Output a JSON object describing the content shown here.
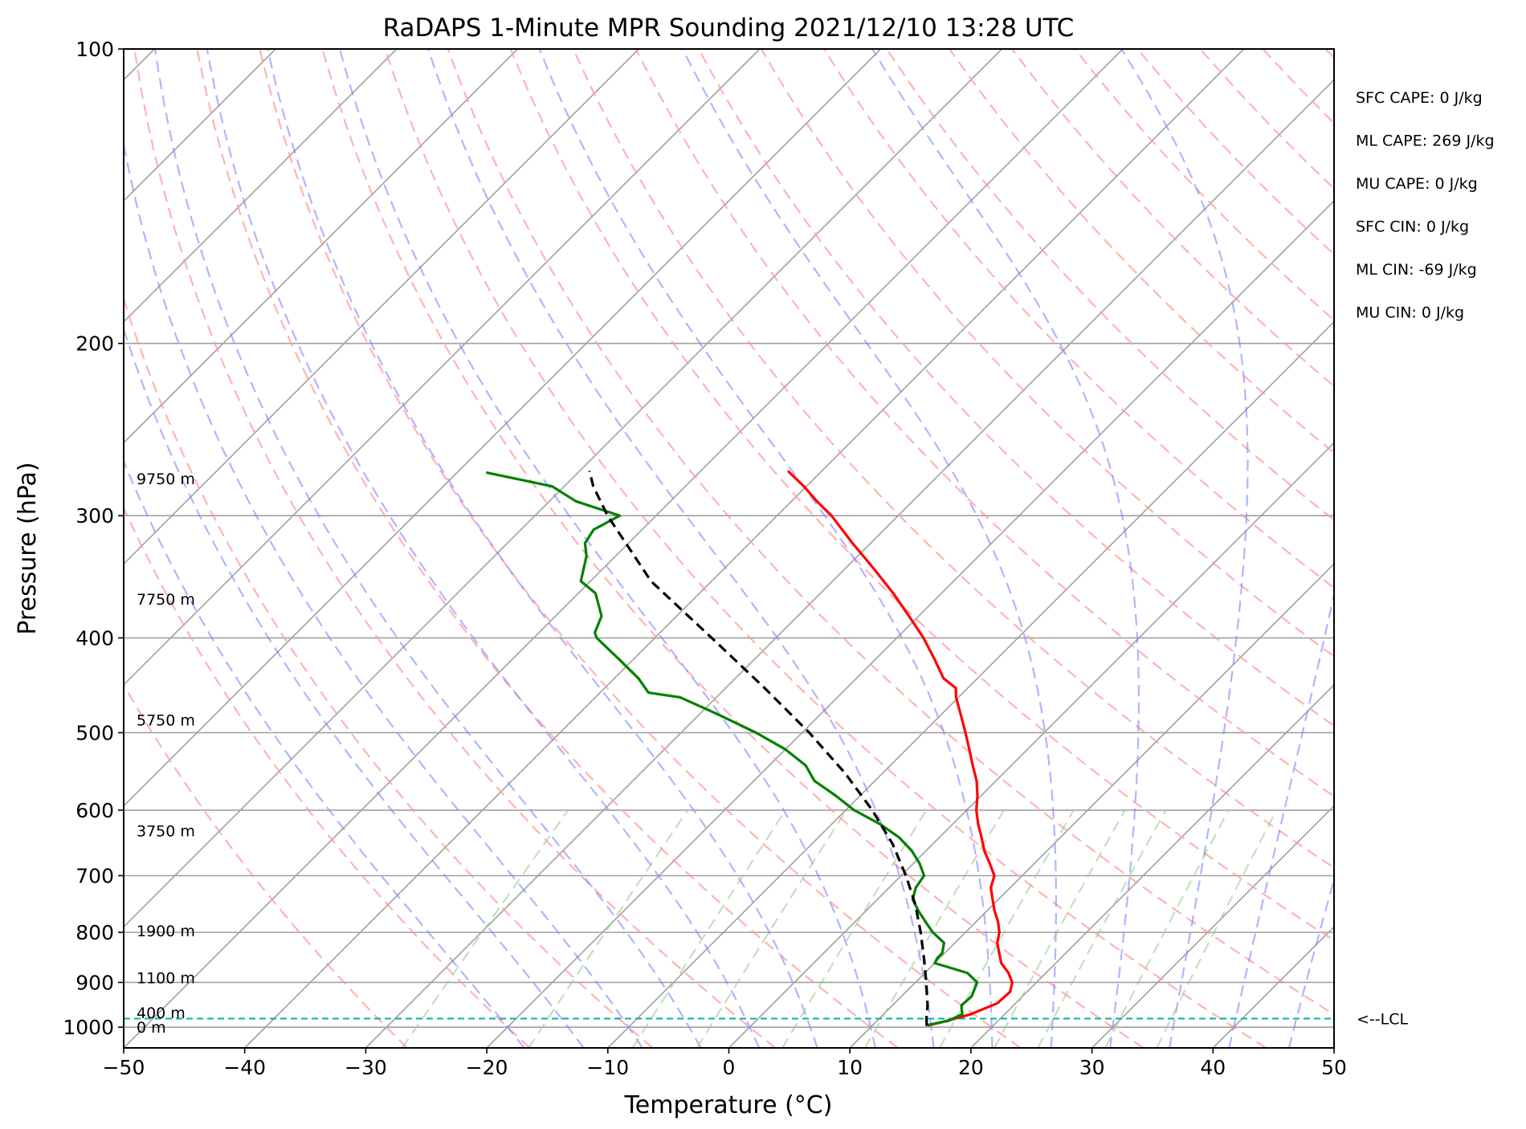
{
  "chart_data": {
    "type": "line",
    "title": "RaDAPS 1-Minute MPR Sounding 2021/12/10 13:28 UTC",
    "xlabel": "Temperature (°C)",
    "ylabel": "Pressure (hPa)",
    "xlim": [
      -50,
      50
    ],
    "ylim": [
      1050,
      100
    ],
    "x_scale": "skew-T (temperature isotherms skewed 45°)",
    "y_scale": "log",
    "grid": true,
    "xticks": [
      "−50",
      "−40",
      "−30",
      "−20",
      "−10",
      "0",
      "10",
      "20",
      "30",
      "40",
      "50"
    ],
    "yticks": [
      {
        "p": 100,
        "label": "100"
      },
      {
        "p": 200,
        "label": "200"
      },
      {
        "p": 300,
        "label": "300"
      },
      {
        "p": 400,
        "label": "400"
      },
      {
        "p": 500,
        "label": "500"
      },
      {
        "p": 600,
        "label": "600"
      },
      {
        "p": 700,
        "label": "700"
      },
      {
        "p": 800,
        "label": "800"
      },
      {
        "p": 900,
        "label": "900"
      },
      {
        "p": 1000,
        "label": "1000"
      }
    ],
    "series": [
      {
        "role": "temperature",
        "color": "#ff0000",
        "points": [
          [
            996,
            14.6
          ],
          [
            985,
            15.8
          ],
          [
            970,
            17.2
          ],
          [
            945,
            18.5
          ],
          [
            920,
            18.6
          ],
          [
            900,
            18.0
          ],
          [
            880,
            16.9
          ],
          [
            860,
            15.5
          ],
          [
            840,
            14.5
          ],
          [
            820,
            13.5
          ],
          [
            800,
            12.8
          ],
          [
            780,
            11.8
          ],
          [
            760,
            10.6
          ],
          [
            740,
            9.5
          ],
          [
            720,
            8.4
          ],
          [
            700,
            7.7
          ],
          [
            680,
            6.3
          ],
          [
            660,
            4.8
          ],
          [
            640,
            3.5
          ],
          [
            620,
            2.1
          ],
          [
            600,
            0.8
          ],
          [
            580,
            -0.3
          ],
          [
            560,
            -1.6
          ],
          [
            540,
            -3.2
          ],
          [
            520,
            -4.8
          ],
          [
            500,
            -6.5
          ],
          [
            480,
            -8.3
          ],
          [
            460,
            -10.2
          ],
          [
            450,
            -11.0
          ],
          [
            440,
            -12.8
          ],
          [
            420,
            -15.2
          ],
          [
            400,
            -17.8
          ],
          [
            380,
            -20.8
          ],
          [
            360,
            -24.0
          ],
          [
            340,
            -27.6
          ],
          [
            320,
            -31.5
          ],
          [
            300,
            -35.5
          ],
          [
            290,
            -37.9
          ],
          [
            280,
            -40.2
          ],
          [
            270,
            -42.8
          ]
        ]
      },
      {
        "role": "dewpoint",
        "color": "#008000",
        "points": [
          [
            996,
            14.4
          ],
          [
            985,
            15.9
          ],
          [
            970,
            16.5
          ],
          [
            950,
            15.7
          ],
          [
            930,
            15.8
          ],
          [
            900,
            15.1
          ],
          [
            880,
            13.5
          ],
          [
            860,
            10.0
          ],
          [
            850,
            9.8
          ],
          [
            840,
            9.8
          ],
          [
            820,
            9.1
          ],
          [
            800,
            7.3
          ],
          [
            780,
            5.8
          ],
          [
            760,
            4.3
          ],
          [
            740,
            2.9
          ],
          [
            720,
            2.2
          ],
          [
            700,
            1.9
          ],
          [
            680,
            0.5
          ],
          [
            660,
            -1.2
          ],
          [
            640,
            -3.3
          ],
          [
            620,
            -6.0
          ],
          [
            600,
            -9.3
          ],
          [
            580,
            -12.0
          ],
          [
            560,
            -15.0
          ],
          [
            540,
            -17.0
          ],
          [
            520,
            -20.0
          ],
          [
            500,
            -23.8
          ],
          [
            480,
            -28.2
          ],
          [
            460,
            -33.0
          ],
          [
            455,
            -36.0
          ],
          [
            440,
            -38.0
          ],
          [
            420,
            -41.3
          ],
          [
            400,
            -44.8
          ],
          [
            395,
            -45.4
          ],
          [
            380,
            -46.2
          ],
          [
            360,
            -48.6
          ],
          [
            350,
            -50.8
          ],
          [
            330,
            -52.4
          ],
          [
            320,
            -53.6
          ],
          [
            310,
            -54.0
          ],
          [
            300,
            -53.0
          ],
          [
            290,
            -57.8
          ],
          [
            280,
            -61.0
          ],
          [
            271,
            -67.6
          ]
        ]
      },
      {
        "role": "parcel",
        "color": "#000000",
        "style": "dashed",
        "points": [
          [
            996,
            14.5
          ],
          [
            980,
            13.9
          ],
          [
            950,
            12.9
          ],
          [
            900,
            10.9
          ],
          [
            850,
            8.7
          ],
          [
            800,
            6.3
          ],
          [
            750,
            3.6
          ],
          [
            700,
            0.4
          ],
          [
            650,
            -3.3
          ],
          [
            600,
            -7.8
          ],
          [
            550,
            -13.1
          ],
          [
            500,
            -19.4
          ],
          [
            450,
            -26.8
          ],
          [
            400,
            -35.3
          ],
          [
            350,
            -45.0
          ],
          [
            300,
            -54.0
          ],
          [
            280,
            -57.6
          ],
          [
            270,
            -59.2
          ]
        ]
      }
    ],
    "lcl_pressure": 980,
    "lcl_label": "<--LCL",
    "height_labels": [
      {
        "p": 275,
        "label": "9750 m"
      },
      {
        "p": 365,
        "label": "7750 m"
      },
      {
        "p": 485,
        "label": "5750 m"
      },
      {
        "p": 630,
        "label": "3750 m"
      },
      {
        "p": 797,
        "label": "1900 m"
      },
      {
        "p": 890,
        "label": "1100 m"
      },
      {
        "p": 966,
        "label": "400 m"
      },
      {
        "p": 1000,
        "label": "0 m"
      }
    ],
    "annotations": [
      "SFC CAPE: 0 J/kg",
      "ML CAPE: 269 J/kg",
      "MU CAPE: 0 J/kg",
      "SFC CIN: 0 J/kg",
      "ML CIN: -69 J/kg",
      "MU CIN: 0 J/kg"
    ],
    "reference_lines": {
      "isotherms_color": "#a0a0a0",
      "dry_adiabats_color": "#ff9999",
      "moist_adiabats_color": "#8080ff",
      "mixing_ratio_color": "#99cc99",
      "lcl_line_color": "#00b3a6"
    }
  }
}
